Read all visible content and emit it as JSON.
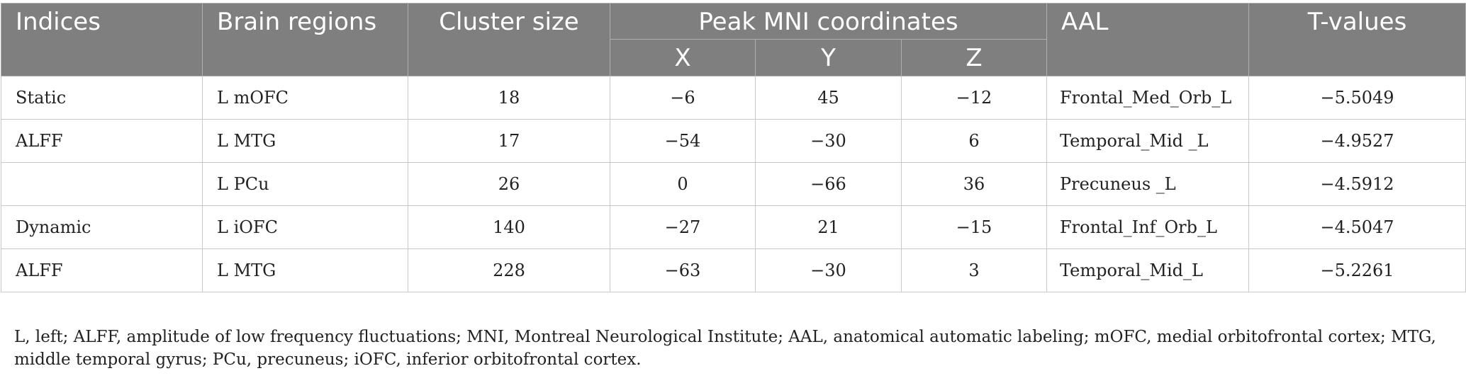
{
  "table": {
    "headers": {
      "indices": "Indices",
      "brain_regions": "Brain regions",
      "cluster_size": "Cluster size",
      "peak_mni": "Peak MNI coordinates",
      "x": "X",
      "y": "Y",
      "z": "Z",
      "aal": "AAL",
      "t_values": "T-values"
    },
    "rows": [
      {
        "indices": "Static",
        "region": "L mOFC",
        "cluster": "18",
        "x": "−6",
        "y": "45",
        "z": "−12",
        "aal": "Frontal_Med_Orb_L",
        "t": "−5.5049"
      },
      {
        "indices": "ALFF",
        "region": "L MTG",
        "cluster": "17",
        "x": "−54",
        "y": "−30",
        "z": "6",
        "aal": "Temporal_Mid _L",
        "t": "−4.9527"
      },
      {
        "indices": "",
        "region": "L PCu",
        "cluster": "26",
        "x": "0",
        "y": "−66",
        "z": "36",
        "aal": "Precuneus _L",
        "t": "−4.5912"
      },
      {
        "indices": "Dynamic",
        "region": "L iOFC",
        "cluster": "140",
        "x": "−27",
        "y": "21",
        "z": "−15",
        "aal": "Frontal_Inf_Orb_L",
        "t": "−4.5047"
      },
      {
        "indices": "ALFF",
        "region": "L MTG",
        "cluster": "228",
        "x": "−63",
        "y": "−30",
        "z": "3",
        "aal": "Temporal_Mid_L",
        "t": "−5.2261"
      }
    ]
  },
  "footnote": "L, left; ALFF, amplitude of low frequency fluctuations; MNI, Montreal Neurological Institute; AAL, anatomical automatic labeling; mOFC, medial orbitofrontal cortex; MTG, middle temporal gyrus; PCu, precuneus; iOFC, inferior orbitofrontal cortex."
}
